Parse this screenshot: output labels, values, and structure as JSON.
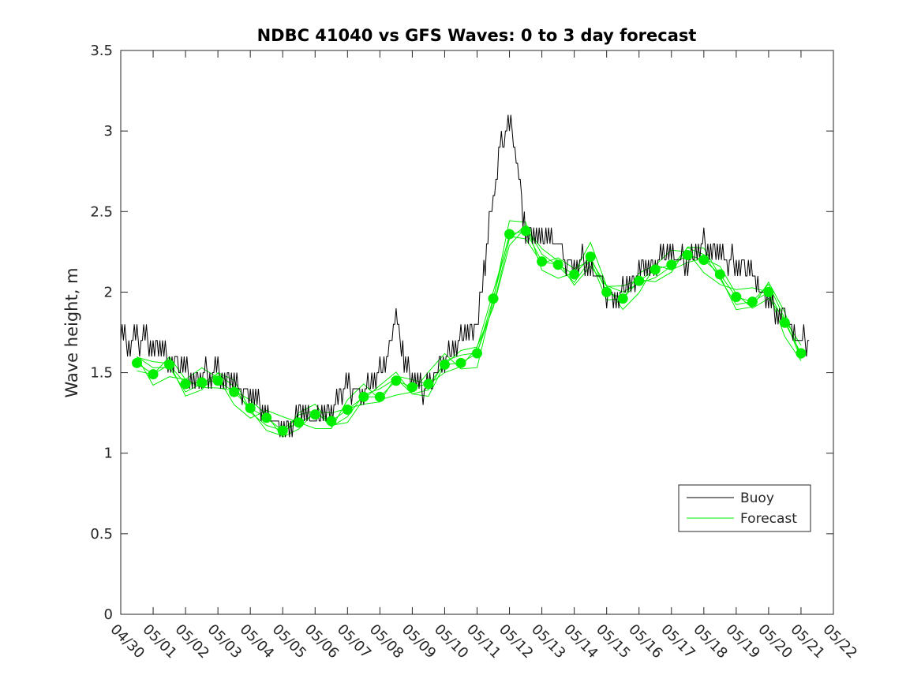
{
  "chart_data": {
    "type": "line",
    "title": "NDBC 41040 vs GFS Waves: 0 to 3 day forecast",
    "xlabel": "",
    "ylabel": "Wave height, m",
    "x_tick_labels": [
      "04/30",
      "05/01",
      "05/02",
      "05/03",
      "05/04",
      "05/05",
      "05/06",
      "05/07",
      "05/08",
      "05/09",
      "05/10",
      "05/11",
      "05/12",
      "05/13",
      "05/14",
      "05/15",
      "05/16",
      "05/17",
      "05/18",
      "05/19",
      "05/20",
      "05/21",
      "05/22"
    ],
    "y_ticks": [
      "0",
      "0.5",
      "1",
      "1.5",
      "2",
      "2.5",
      "3",
      "3.5"
    ],
    "ylim": [
      0,
      3.5
    ],
    "x_range_days": [
      0,
      22
    ],
    "grid": false,
    "legend": {
      "placement": "lower-right",
      "entries": [
        "Buoy",
        "Forecast"
      ]
    },
    "colors": {
      "buoy": "#000000",
      "forecast": "#00ee00",
      "axis": "#262626"
    },
    "series": [
      {
        "name": "Buoy",
        "x_days": [
          0,
          0.25,
          0.5,
          0.75,
          1,
          1.25,
          1.5,
          1.75,
          2,
          2.25,
          2.5,
          2.75,
          3,
          3.25,
          3.5,
          3.75,
          4,
          4.25,
          4.5,
          4.75,
          5,
          5.25,
          5.5,
          5.75,
          6,
          6.25,
          6.5,
          6.75,
          7,
          7.25,
          7.5,
          7.75,
          8,
          8.25,
          8.5,
          8.75,
          9,
          9.25,
          9.5,
          9.75,
          10,
          10.25,
          10.5,
          10.75,
          11,
          11.25,
          11.5,
          11.75,
          12,
          12.25,
          12.5,
          12.75,
          13,
          13.25,
          13.5,
          13.75,
          14,
          14.25,
          14.5,
          14.75,
          15,
          15.25,
          15.5,
          15.75,
          16,
          16.25,
          16.5,
          16.75,
          17,
          17.25,
          17.5,
          17.75,
          18,
          18.25,
          18.5,
          18.75,
          19,
          19.25,
          19.5,
          19.75,
          20,
          20.25,
          20.5,
          20.75,
          21,
          21.25
        ],
        "values": [
          1.75,
          1.7,
          1.7,
          1.7,
          1.65,
          1.65,
          1.6,
          1.55,
          1.5,
          1.45,
          1.5,
          1.5,
          1.5,
          1.45,
          1.45,
          1.4,
          1.35,
          1.3,
          1.25,
          1.2,
          1.15,
          1.2,
          1.25,
          1.25,
          1.2,
          1.25,
          1.3,
          1.35,
          1.4,
          1.4,
          1.35,
          1.45,
          1.5,
          1.6,
          1.85,
          1.6,
          1.45,
          1.4,
          1.4,
          1.5,
          1.6,
          1.65,
          1.7,
          1.75,
          1.8,
          2.2,
          2.6,
          2.9,
          3.05,
          2.8,
          2.35,
          2.4,
          2.3,
          2.35,
          2.3,
          2.2,
          2.15,
          2.2,
          2.15,
          2.1,
          2.0,
          1.95,
          2.0,
          2.05,
          2.15,
          2.15,
          2.2,
          2.2,
          2.25,
          2.2,
          2.2,
          2.25,
          2.3,
          2.25,
          2.25,
          2.2,
          2.2,
          2.15,
          2.1,
          2.0,
          1.95,
          1.9,
          1.85,
          1.75,
          1.7,
          1.7
        ]
      },
      {
        "name": "Forecast",
        "x_days": [
          0.5,
          1,
          1.5,
          2,
          2.5,
          3,
          3.5,
          4,
          4.5,
          5,
          5.5,
          6,
          6.5,
          7,
          7.5,
          8,
          8.5,
          9,
          9.5,
          10,
          10.5,
          11,
          11.5,
          12,
          12.5,
          13,
          13.5,
          14,
          14.5,
          15,
          15.5,
          16,
          16.5,
          17,
          17.5,
          18,
          18.5,
          19,
          19.5,
          20,
          20.5,
          21
        ],
        "values": [
          1.56,
          1.49,
          1.55,
          1.43,
          1.44,
          1.45,
          1.38,
          1.28,
          1.22,
          1.14,
          1.19,
          1.24,
          1.2,
          1.27,
          1.35,
          1.35,
          1.45,
          1.41,
          1.43,
          1.55,
          1.56,
          1.62,
          1.96,
          2.36,
          2.38,
          2.19,
          2.17,
          2.11,
          2.22,
          2.0,
          1.96,
          2.07,
          2.14,
          2.17,
          2.23,
          2.2,
          2.11,
          1.97,
          1.94,
          2.0,
          1.81,
          1.62
        ]
      }
    ]
  }
}
